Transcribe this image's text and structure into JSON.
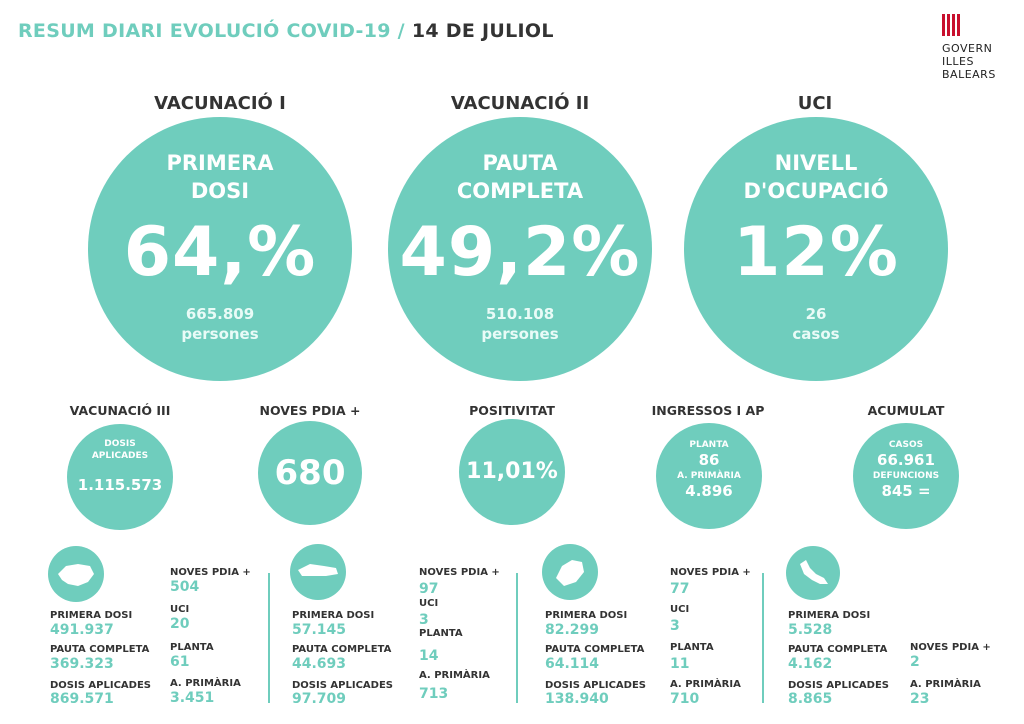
{
  "header": {
    "title_part1": "RESUM DIARI EVOLUCIÓ COVID-19 /",
    "title_part2": "14 DE JULIOL"
  },
  "logo": {
    "line1": "GOVERN",
    "line2": "ILLES",
    "line3": "BALEARS"
  },
  "big_cards": [
    {
      "label": "VACUNACIÓ I",
      "head1": "PRIMERA",
      "head2": "DOSI",
      "value": "64,%",
      "sub1": "665.809",
      "sub2": "persones"
    },
    {
      "label": "VACUNACIÓ II",
      "head1": "PAUTA",
      "head2": "COMPLETA",
      "value": "49,2%",
      "sub1": "510.108",
      "sub2": "persones"
    },
    {
      "label": "UCI",
      "head1": "NIVELL",
      "head2": "D'OCUPACIÓ",
      "value": "12%",
      "sub1": "26",
      "sub2": "casos"
    }
  ],
  "mid_cards": [
    {
      "label": "VACUNACIÓ III",
      "cap1": "DOSIS",
      "cap2": "APLICADES",
      "value": "1.115.573"
    },
    {
      "label": "NOVES PDIA +",
      "value": "680"
    },
    {
      "label": "POSITIVITAT",
      "value": "11,01%"
    },
    {
      "label": "INGRESSOS I AP",
      "cap1": "PLANTA",
      "v1": "86",
      "cap2": "A. PRIMÀRIA",
      "v2": "4.896"
    },
    {
      "label": "ACUMULAT",
      "cap1": "CASOS",
      "v1": "66.961",
      "cap2": "DEFUNCIONS",
      "v2": "845 ="
    }
  ],
  "islands": [
    {
      "name": "Mallorca",
      "primera_label": "PRIMERA DOSI",
      "primera": "491.937",
      "pauta_label": "PAUTA COMPLETA",
      "pauta": "369.323",
      "dosis_label": "DOSIS APLICADES",
      "dosis": "869.571",
      "pdia_label": "NOVES PDIA +",
      "pdia": "504",
      "uci_label": "UCI",
      "uci": "20",
      "planta_label": "PLANTA",
      "planta": "61",
      "ap_label": "A. PRIMÀRIA",
      "ap": "3.451"
    },
    {
      "name": "Menorca",
      "primera_label": "PRIMERA DOSI",
      "primera": "57.145",
      "pauta_label": "PAUTA COMPLETA",
      "pauta": "44.693",
      "dosis_label": "DOSIS APLICADES",
      "dosis": "97.709",
      "pdia_label": "NOVES PDIA +",
      "pdia": "97",
      "uci_label": "UCI",
      "uci": "3",
      "planta_label": "PLANTA",
      "planta": "14",
      "ap_label": "A. PRIMÀRIA",
      "ap": "713"
    },
    {
      "name": "Eivissa",
      "primera_label": "PRIMERA DOSI",
      "primera": "82.299",
      "pauta_label": "PAUTA COMPLETA",
      "pauta": "64.114",
      "dosis_label": "DOSIS APLICADES",
      "dosis": "138.940",
      "pdia_label": "NOVES PDIA +",
      "pdia": "77",
      "uci_label": "UCI",
      "uci": "3",
      "planta_label": "PLANTA",
      "planta": "11",
      "ap_label": "A. PRIMÀRIA",
      "ap": "710"
    },
    {
      "name": "Formentera",
      "primera_label": "PRIMERA DOSI",
      "primera": "5.528",
      "pauta_label": "PAUTA COMPLETA",
      "pauta": "4.162",
      "dosis_label": "DOSIS APLICADES",
      "dosis": "8.865",
      "pdia_label": "NOVES PDIA +",
      "pdia": "2",
      "ap_label": "A. PRIMÀRIA",
      "ap": "23"
    }
  ],
  "colors": {
    "accent": "#6fcdbd",
    "logo_red": "#c8102e",
    "text": "#333333"
  }
}
